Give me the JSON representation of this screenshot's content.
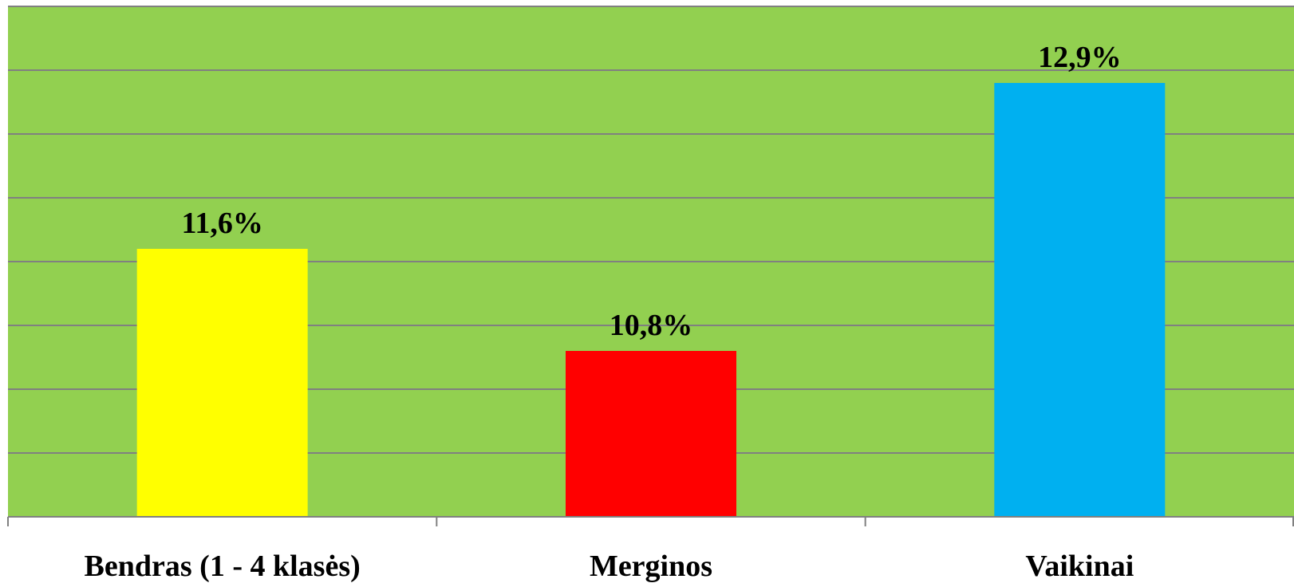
{
  "chart_data": {
    "type": "bar",
    "categories": [
      "Bendras (1 - 4 klasės)",
      "Merginos",
      "Vaikinai"
    ],
    "values": [
      11.6,
      10.8,
      12.9
    ],
    "data_labels": [
      "11,6%",
      "10,8%",
      "12,9%"
    ],
    "bar_colors": [
      "#FFFF00",
      "#FF0000",
      "#00B0F0"
    ],
    "plot_background": "#92D050",
    "gridline_color": "#808080",
    "ylim": [
      9.5,
      13.5
    ],
    "grid": true,
    "legend": "none"
  }
}
